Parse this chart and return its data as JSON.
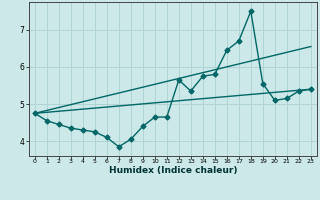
{
  "xlabel": "Humidex (Indice chaleur)",
  "bg_color": "#cce8e8",
  "grid_color": "#b0d4d4",
  "line_color": "#006666",
  "xlim": [
    -0.5,
    23.5
  ],
  "ylim": [
    3.6,
    7.75
  ],
  "yticks": [
    4,
    5,
    6,
    7
  ],
  "xticks": [
    0,
    1,
    2,
    3,
    4,
    5,
    6,
    7,
    8,
    9,
    10,
    11,
    12,
    13,
    14,
    15,
    16,
    17,
    18,
    19,
    20,
    21,
    22,
    23
  ],
  "line1_x": [
    0,
    1,
    2,
    3,
    4,
    5,
    6,
    7,
    8,
    9,
    10,
    11,
    12,
    13,
    14,
    15,
    16,
    17,
    18,
    19,
    20,
    21,
    22,
    23
  ],
  "line1_y": [
    4.75,
    4.55,
    4.45,
    4.35,
    4.3,
    4.25,
    4.1,
    3.85,
    4.05,
    4.4,
    4.65,
    4.65,
    5.65,
    5.35,
    5.75,
    5.8,
    6.45,
    6.7,
    7.5,
    5.55,
    5.1,
    5.15,
    5.35,
    5.4
  ],
  "line2_x": [
    0,
    23
  ],
  "line2_y": [
    4.75,
    5.4
  ],
  "line3_x": [
    0,
    23
  ],
  "line3_y": [
    4.75,
    6.55
  ]
}
